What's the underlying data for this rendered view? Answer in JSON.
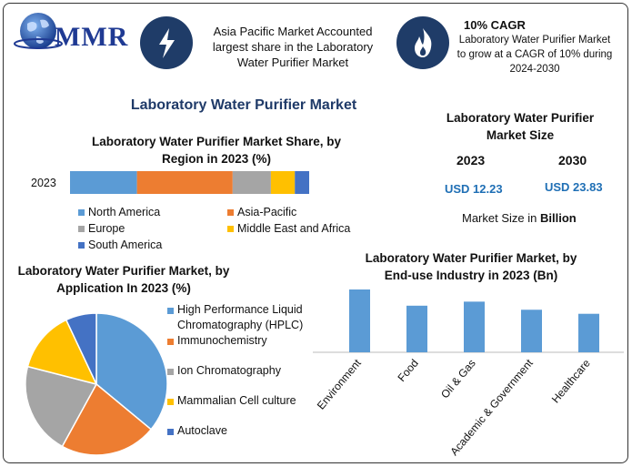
{
  "header": {
    "logo_text": "MMR",
    "info1": [
      "Asia Pacific Market Accounted",
      "largest share in the Laboratory",
      "Water Purifier Market"
    ],
    "cagr_title": "10% CAGR",
    "cagr_text": [
      "Laboratory Water Purifier Market",
      "to grow at a CAGR of 10% during",
      "2024-2030"
    ]
  },
  "main_title": "Laboratory Water Purifier Market",
  "market_size": {
    "title_line1": "Laboratory Water Purifier",
    "title_line2": "Market Size",
    "year1": "2023",
    "year2": "2030",
    "value1": "USD 12.23",
    "value2": "USD 23.83",
    "note_prefix": "Market Size in ",
    "note_bold": "Billion"
  },
  "colors": {
    "blue": "#5b9bd5",
    "orange": "#ed7d31",
    "gray": "#a5a5a5",
    "yellow": "#ffc000",
    "darkblue": "#4472c4",
    "title_navy": "#1f3a68"
  },
  "chart_data": [
    {
      "type": "bar",
      "orientation": "horizontal-stacked",
      "title_line1": "Laboratory Water Purifier Market Share, by",
      "title_line2": "Region in 2023 (%)",
      "categories": [
        "2023"
      ],
      "series": [
        {
          "name": "North America",
          "values": [
            28
          ],
          "color": "#5b9bd5"
        },
        {
          "name": "Asia-Pacific",
          "values": [
            40
          ],
          "color": "#ed7d31"
        },
        {
          "name": "Europe",
          "values": [
            16
          ],
          "color": "#a5a5a5"
        },
        {
          "name": "Middle East and Africa",
          "values": [
            10
          ],
          "color": "#ffc000"
        },
        {
          "name": "South America",
          "values": [
            6
          ],
          "color": "#4472c4"
        }
      ]
    },
    {
      "type": "pie",
      "title_line1": "Laboratory Water Purifier Market, by",
      "title_line2": "Application In 2023 (%)",
      "labels": [
        "High Performance Liquid Chromatography (HPLC)",
        "Immunochemistry",
        "Ion Chromatography",
        "Mammalian Cell culture",
        "Autoclave"
      ],
      "legend_lines": [
        [
          "High Performance Liquid",
          "Chromatography (HPLC)"
        ],
        [
          "Immunochemistry"
        ],
        [
          "Ion Chromatography"
        ],
        [
          "Mammalian Cell culture"
        ],
        [
          "Autoclave"
        ]
      ],
      "values": [
        36,
        22,
        21,
        14,
        7
      ],
      "colors": [
        "#5b9bd5",
        "#ed7d31",
        "#a5a5a5",
        "#ffc000",
        "#4472c4"
      ]
    },
    {
      "type": "bar",
      "title_line1": "Laboratory Water Purifier Market, by",
      "title_line2": "End-use Industry in 2023 (Bn)",
      "categories": [
        "Environment",
        "Food",
        "Oil & Gas",
        "Academic & Government",
        "Healthcare"
      ],
      "values": [
        3.1,
        2.3,
        2.5,
        2.1,
        1.9
      ],
      "ylim": [
        0,
        3.5
      ],
      "color": "#5b9bd5"
    }
  ]
}
